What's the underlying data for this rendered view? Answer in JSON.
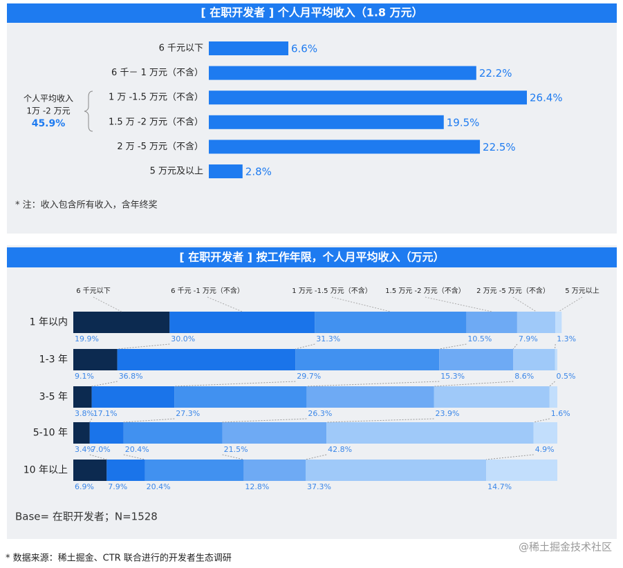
{
  "chart_data": [
    {
      "type": "hbar",
      "title": "[ 在职开发者 ] 个人月平均收入（1.8 万元）",
      "categories": [
        "6 千元以下",
        "6 千－ 1 万元（不含）",
        "1 万 -1.5 万元（不含）",
        "1.5 万 -2 万元（不含）",
        "2 万 -5 万元（不含）",
        "5 万元及以上"
      ],
      "values": [
        6.6,
        22.2,
        26.4,
        19.5,
        22.5,
        2.8
      ],
      "value_labels": [
        "6.6%",
        "22.2%",
        "26.4%",
        "19.5%",
        "22.5%",
        "2.8%"
      ],
      "color": "#1e7bf0",
      "annotation": [
        "个人平均收入",
        "1万 -2 万元",
        "45.9%"
      ],
      "note": "* 注：收入包含所有收入，含年终奖"
    },
    {
      "type": "stacked_hbar",
      "title": "[ 在职开发者 ] 按工作年限，个人月平均收入（万元）",
      "categories": [
        "1 年以内",
        "1-3 年",
        "3-5 年",
        "5-10 年",
        "10 年以上"
      ],
      "series": [
        {
          "name": "6 千元以下",
          "color": "#0c2a50",
          "values": [
            19.9,
            9.1,
            3.8,
            3.4,
            6.9
          ],
          "value_labels": [
            "19.9%",
            "9.1%",
            "3.8%",
            "3.4%",
            "6.9%"
          ]
        },
        {
          "name": "6 千元 -1 万元（不含）",
          "color": "#1a74ea",
          "values": [
            30.0,
            36.8,
            17.1,
            7.0,
            7.9
          ],
          "value_labels": [
            "30.0%",
            "36.8%",
            "17.1%",
            "7.0%",
            "7.9%"
          ]
        },
        {
          "name": "1 万元 -1.5 万元（不含）",
          "color": "#4191f0",
          "values": [
            31.3,
            29.7,
            27.3,
            20.4,
            20.4
          ],
          "value_labels": [
            "31.3%",
            "29.7%",
            "27.3%",
            "20.4%",
            "20.4%"
          ]
        },
        {
          "name": "1.5 万元 -2 万元（不含）",
          "color": "#6eaaf4",
          "values": [
            10.5,
            15.3,
            26.3,
            21.5,
            12.8
          ],
          "value_labels": [
            "10.5%",
            "15.3%",
            "26.3%",
            "21.5%",
            "12.8%"
          ]
        },
        {
          "name": "2 万元 -5 万元（不含）",
          "color": "#9fc9f9",
          "values": [
            7.9,
            8.6,
            23.9,
            42.8,
            37.3
          ],
          "value_labels": [
            "7.9%",
            "8.6%",
            "23.9%",
            "42.8%",
            "37.3%"
          ]
        },
        {
          "name": "5 万元以上",
          "color": "#c2defc",
          "values": [
            1.3,
            0.5,
            1.6,
            4.9,
            14.7
          ],
          "value_labels": [
            "1.3%",
            "0.5%",
            "1.6%",
            "4.9%",
            "14.7%"
          ]
        }
      ],
      "note": "Base= 在职开发者；N=1528"
    }
  ],
  "source": "* 数据来源：稀土掘金、CTR 联合进行的开发者生态调研",
  "watermark": "@稀土掘金技术社区"
}
